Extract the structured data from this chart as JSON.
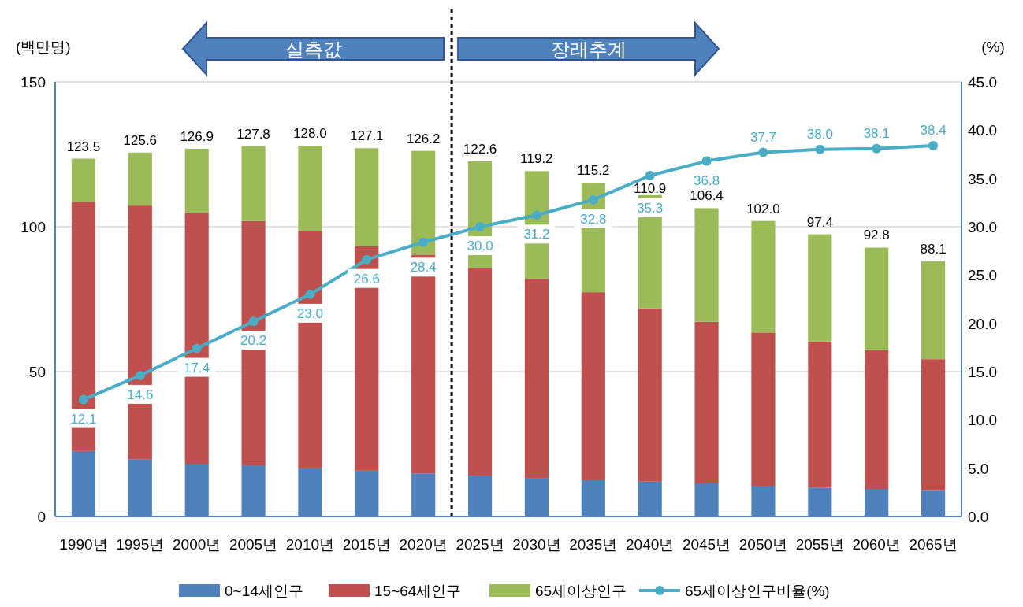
{
  "chart_data": {
    "type": "bar",
    "stacked": true,
    "ylabel": "(백만명)",
    "y2label": "(%)",
    "x": [
      1990,
      1995,
      2000,
      2005,
      2010,
      2015,
      2020,
      2025,
      2030,
      2035,
      2040,
      2045,
      2050,
      2055,
      2060,
      2065
    ],
    "xlim": [
      1987.5,
      2067.5
    ],
    "xticks": [
      {
        "value": 1990,
        "label": "1990년"
      },
      {
        "value": 1995,
        "label": "1995년"
      },
      {
        "value": 2000,
        "label": "2000년"
      },
      {
        "value": 2005,
        "label": "2005년"
      },
      {
        "value": 2010,
        "label": "2010년"
      },
      {
        "value": 2015,
        "label": "2015년"
      },
      {
        "value": 2020,
        "label": "2020년"
      },
      {
        "value": 2025,
        "label": "2025년"
      },
      {
        "value": 2030,
        "label": "2030년"
      },
      {
        "value": 2035,
        "label": "2035년"
      },
      {
        "value": 2040,
        "label": "2040년"
      },
      {
        "value": 2045,
        "label": "2045년"
      },
      {
        "value": 2050,
        "label": "2050년"
      },
      {
        "value": 2055,
        "label": "2055년"
      },
      {
        "value": 2060,
        "label": "2060년"
      },
      {
        "value": 2065,
        "label": "2065년"
      }
    ],
    "ylim": [
      0,
      150
    ],
    "yticks": [
      0,
      50,
      100,
      150
    ],
    "y2lim": [
      0,
      45
    ],
    "y2ticks": [
      {
        "value": 0,
        "label": "0.0"
      },
      {
        "value": 5,
        "label": "5.0"
      },
      {
        "value": 10,
        "label": "10.0"
      },
      {
        "value": 15,
        "label": "15.0"
      },
      {
        "value": 20,
        "label": "20.0"
      },
      {
        "value": 25,
        "label": "25.0"
      },
      {
        "value": 30,
        "label": "30.0"
      },
      {
        "value": 35,
        "label": "35.0"
      },
      {
        "value": 40,
        "label": "40.0"
      },
      {
        "value": 45,
        "label": "45.0"
      }
    ],
    "grid": "y",
    "legend": "bottom",
    "series": [
      {
        "name": "0~14세인구",
        "color": "#4f81bd",
        "values": [
          22.6,
          19.8,
          18.2,
          17.7,
          16.6,
          15.8,
          14.9,
          14.1,
          13.3,
          12.5,
          12.0,
          11.4,
          10.6,
          10.0,
          9.5,
          8.9
        ]
      },
      {
        "name": "15~64세인구",
        "color": "#c0504d",
        "values": [
          86.0,
          87.5,
          86.6,
          84.3,
          82.0,
          77.5,
          75.5,
          71.7,
          68.7,
          64.9,
          59.8,
          55.8,
          52.9,
          50.4,
          47.9,
          45.4
        ]
      },
      {
        "name": "65세이상인구",
        "color": "#9bbb59",
        "values": [
          14.9,
          18.3,
          22.1,
          25.8,
          29.4,
          33.8,
          35.8,
          36.8,
          37.2,
          37.8,
          39.1,
          39.2,
          38.5,
          37.0,
          35.4,
          33.8
        ]
      },
      {
        "name": "65세이상인구비율(%)",
        "type": "line",
        "axis": "y2",
        "color": "#4bacc6",
        "marker": "circle",
        "values": [
          12.1,
          14.6,
          17.4,
          20.2,
          23.0,
          26.6,
          28.4,
          30.0,
          31.2,
          32.8,
          35.3,
          36.8,
          37.7,
          38.0,
          38.1,
          38.4
        ],
        "value_labels": [
          "12.1",
          "14.6",
          "17.4",
          "20.2",
          "23.0",
          "26.6",
          "28.4",
          "30.0",
          "31.2",
          "32.8",
          "35.3",
          "36.8",
          "37.7",
          "38.0",
          "38.1",
          "38.4"
        ]
      }
    ],
    "totals": [
      "123.5",
      "125.6",
      "126.9",
      "127.8",
      "128.0",
      "127.1",
      "126.2",
      "122.6",
      "119.2",
      "115.2",
      "110.9",
      "106.4",
      "102.0",
      "97.4",
      "92.8",
      "88.1"
    ],
    "ref_lines": [
      {
        "axis": "x",
        "value": 2022.5,
        "color": "#000000",
        "line_style": "dashed"
      }
    ],
    "annotations": [
      "실측값",
      "장래추계"
    ]
  }
}
